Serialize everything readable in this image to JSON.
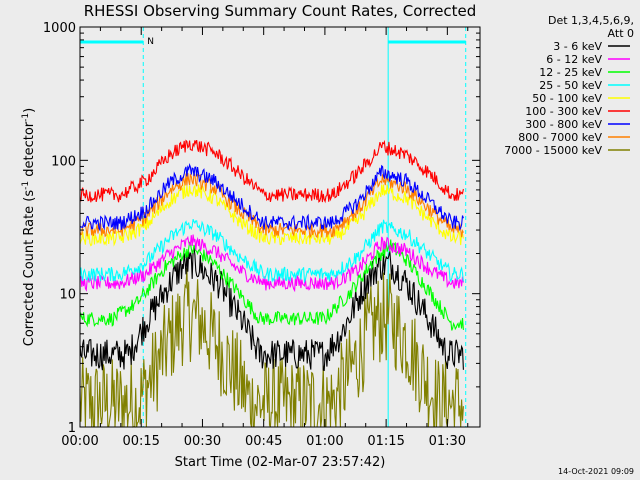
{
  "chart_data": {
    "type": "line",
    "title": "RHESSI Observing Summary Count Rates, Corrected",
    "xlabel": "Start Time (02-Mar-07 23:57:42)",
    "ylabel": "Corrected Count Rate (s",
    "ylabel_sup1": "-1",
    "ylabel_mid": " detector",
    "ylabel_sup2": "-1",
    "ylabel_end": ")",
    "yscale": "log",
    "xlim_min": [
      0,
      98
    ],
    "ylim": [
      1,
      1000
    ],
    "x_tick_minutes": [
      0,
      15,
      30,
      45,
      60,
      75,
      90
    ],
    "x_tick_labels": [
      "00:00",
      "00:15",
      "00:30",
      "00:45",
      "01:00",
      "01:15",
      "01:30"
    ],
    "y_ticks": [
      1,
      10,
      100,
      1000
    ],
    "y_tick_labels": [
      "1",
      "10",
      "100",
      "1000"
    ],
    "legend_header_1": "Det 1,3,4,5,6,9,",
    "legend_header_2": "Att 0",
    "night_marker_label": "N",
    "night_bars": [
      {
        "start": 0,
        "end": 15.5
      },
      {
        "start": 75.5,
        "end": 94.5
      }
    ],
    "series": [
      {
        "name": "3 - 6 keV",
        "color": "#000000",
        "x": [
          0,
          12,
          16,
          22,
          25,
          28,
          34,
          40,
          44,
          60,
          64,
          70,
          73,
          76,
          80,
          86,
          90,
          94
        ],
        "y": [
          3.5,
          3.5,
          6,
          12,
          16,
          17,
          12,
          6,
          3.5,
          3.5,
          5,
          12,
          16,
          17,
          12,
          6,
          3.5,
          3.5
        ]
      },
      {
        "name": "6 - 12 keV",
        "color": "#ff00ff",
        "x": [
          0,
          10,
          16,
          22,
          27,
          33,
          39,
          45,
          62,
          68,
          74,
          80,
          86,
          91,
          94
        ],
        "y": [
          12,
          12,
          14,
          20,
          25,
          21,
          15,
          12,
          12,
          15,
          24,
          21,
          15,
          12,
          12
        ]
      },
      {
        "name": "12 - 25 keV",
        "color": "#00ff00",
        "x": [
          0,
          8,
          14,
          21,
          27,
          32,
          38,
          44,
          60,
          66,
          72,
          76,
          80,
          86,
          91,
          94
        ],
        "y": [
          6.5,
          6.5,
          8.5,
          16,
          22,
          18,
          11,
          6.5,
          6.5,
          10,
          18,
          23,
          18,
          10,
          6,
          6
        ]
      },
      {
        "name": "25 - 50 keV",
        "color": "#00ffff",
        "x": [
          0,
          10,
          16,
          22,
          27,
          33,
          39,
          45,
          62,
          68,
          74,
          80,
          86,
          91,
          94
        ],
        "y": [
          14,
          14,
          17,
          26,
          34,
          28,
          19,
          14,
          14,
          19,
          32,
          28,
          19,
          14,
          14
        ]
      },
      {
        "name": "50 - 100 keV",
        "color": "#ffff00",
        "x": [
          0,
          10,
          16,
          22,
          27,
          33,
          39,
          45,
          62,
          68,
          74,
          80,
          86,
          91,
          94
        ],
        "y": [
          26,
          26,
          32,
          50,
          62,
          52,
          35,
          26,
          26,
          35,
          60,
          52,
          35,
          26,
          26
        ]
      },
      {
        "name": "100 - 300 keV",
        "color": "#ff0000",
        "x": [
          0,
          10,
          16,
          22,
          27,
          33,
          39,
          45,
          62,
          68,
          74,
          80,
          86,
          91,
          94
        ],
        "y": [
          55,
          55,
          70,
          110,
          135,
          115,
          80,
          55,
          55,
          80,
          128,
          110,
          78,
          55,
          55
        ]
      },
      {
        "name": "300 - 800 keV",
        "color": "#0000ff",
        "x": [
          0,
          10,
          16,
          22,
          27,
          33,
          39,
          45,
          62,
          68,
          74,
          80,
          86,
          91,
          94
        ],
        "y": [
          34,
          34,
          42,
          68,
          84,
          70,
          48,
          34,
          34,
          48,
          82,
          70,
          48,
          34,
          34
        ]
      },
      {
        "name": "800 - 7000 keV",
        "color": "#ff8000",
        "x": [
          0,
          10,
          16,
          22,
          27,
          33,
          39,
          45,
          62,
          68,
          74,
          80,
          86,
          91,
          94
        ],
        "y": [
          30,
          30,
          37,
          60,
          74,
          62,
          42,
          30,
          30,
          42,
          72,
          62,
          42,
          30,
          30
        ]
      },
      {
        "name": "7000 - 15000 keV",
        "color": "#808000",
        "x": [
          0,
          14,
          18,
          22,
          26,
          29,
          34,
          38,
          42,
          62,
          66,
          70,
          73,
          76,
          80,
          84,
          88,
          94
        ],
        "y": [
          1.5,
          1.5,
          2.5,
          4.5,
          7,
          6.5,
          4,
          2.5,
          1.5,
          1.5,
          2.5,
          4.5,
          6.5,
          6.5,
          4.5,
          2.5,
          1.5,
          1.5
        ]
      }
    ],
    "grid": false,
    "legend": "right",
    "timestamp": "14-Oct-2021 09:09"
  }
}
